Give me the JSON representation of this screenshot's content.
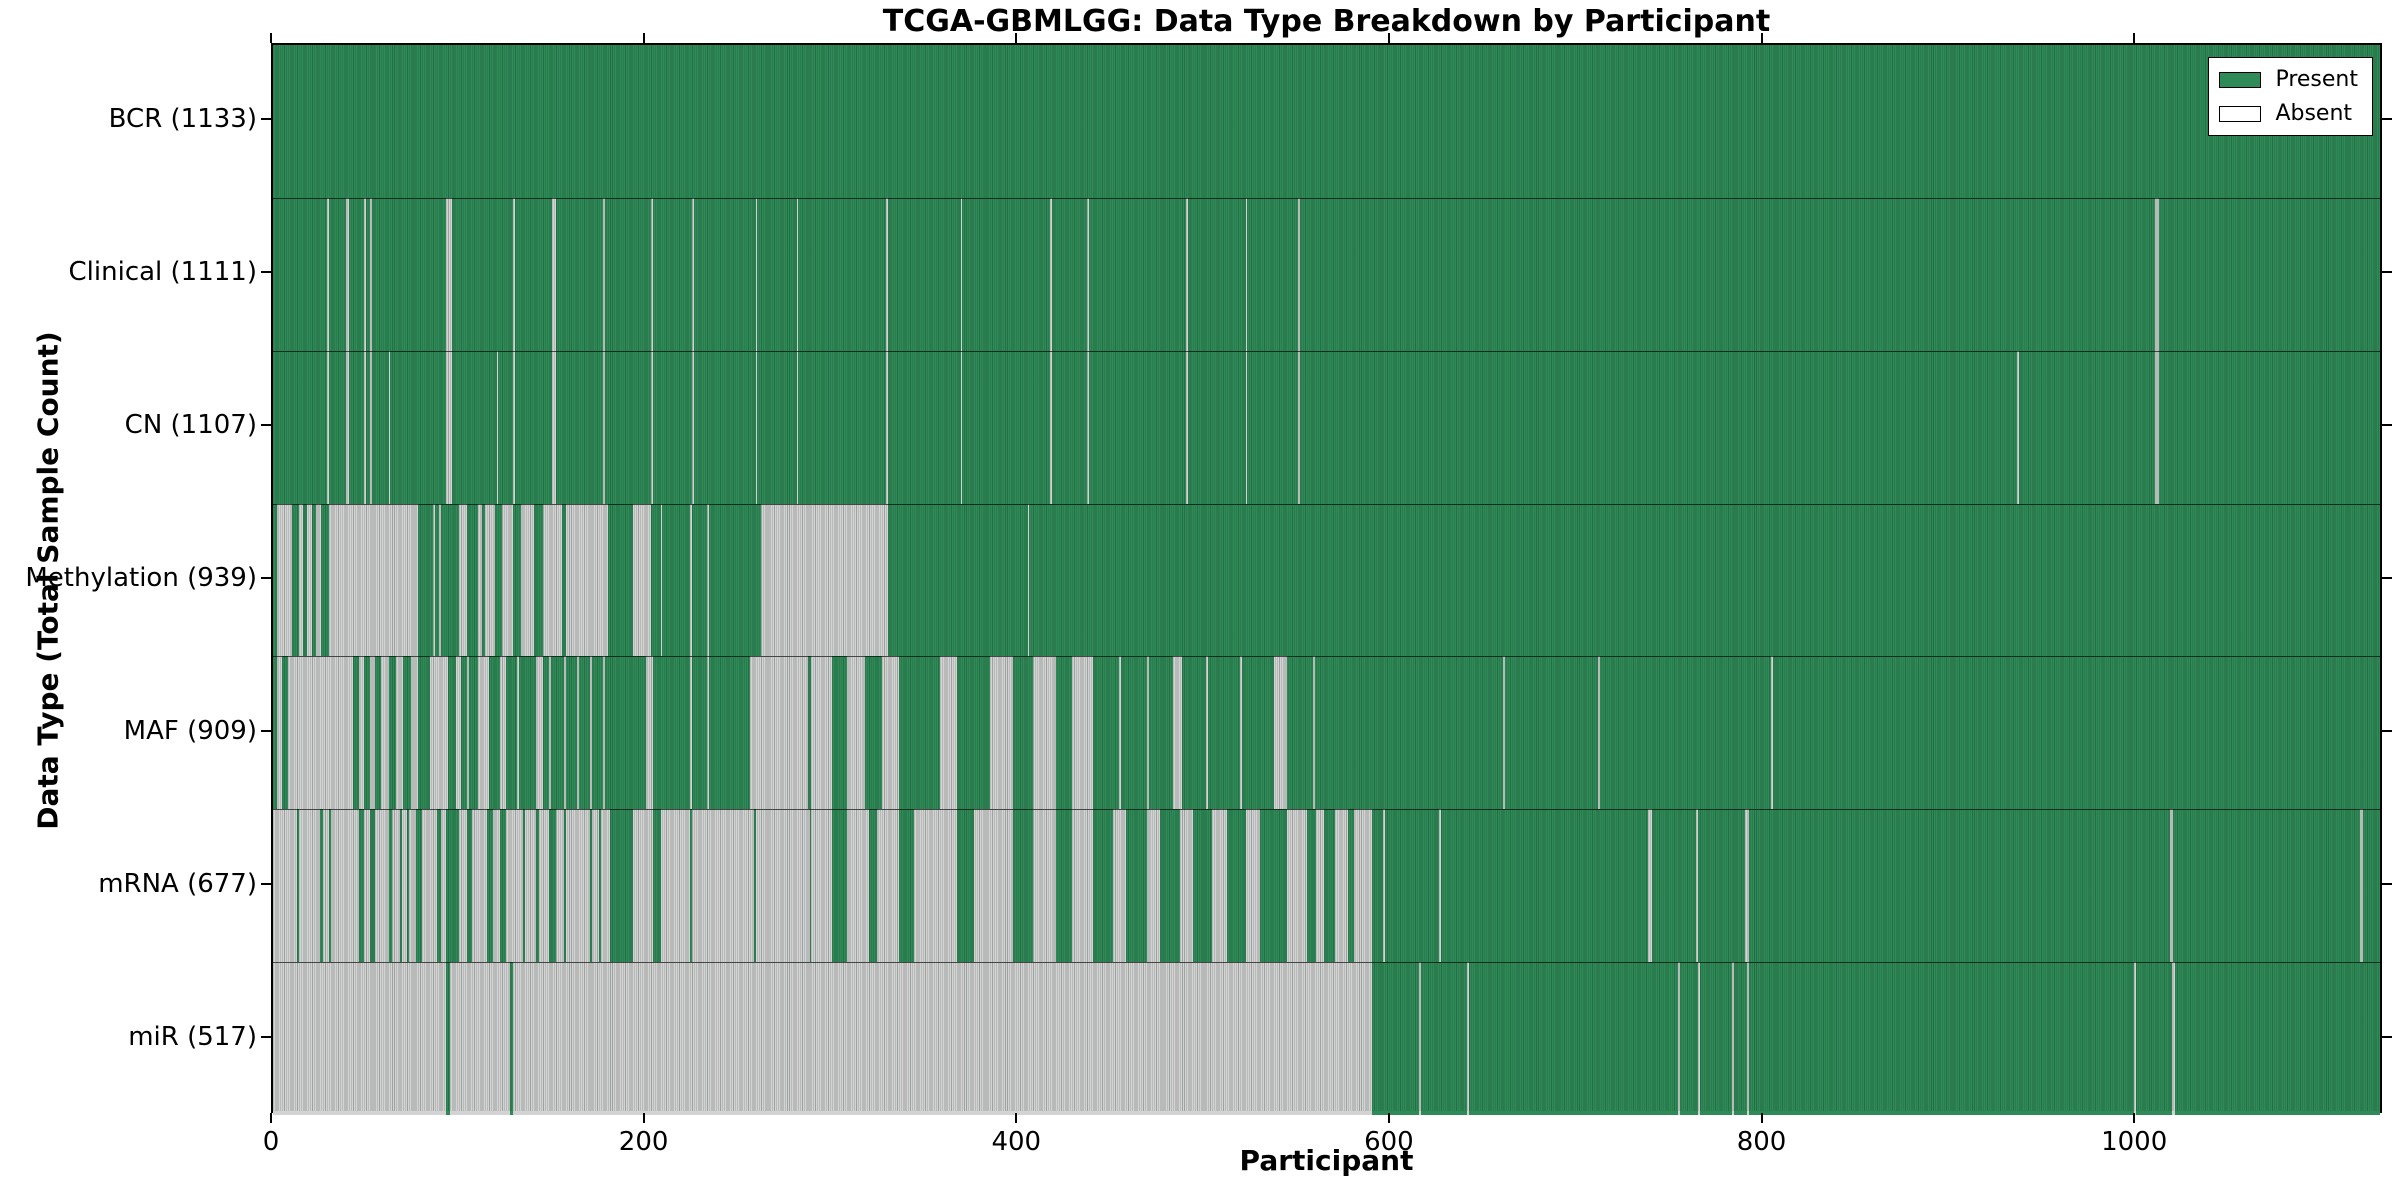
{
  "page": {
    "background": "#ffffff"
  },
  "chart_data": {
    "type": "heatmap",
    "title": "TCGA-GBMLGG: Data Type Breakdown by Participant",
    "xlabel": "Participant",
    "ylabel": "Data Type (Total Sample Count)",
    "x_ticks": [
      0,
      200,
      400,
      600,
      800,
      1000
    ],
    "x_range": [
      0,
      1133
    ],
    "n_participants": 1133,
    "grid": false,
    "legend": {
      "position": "upper right",
      "entries": [
        {
          "label": "Present",
          "color": "#2E8B57"
        },
        {
          "label": "Absent",
          "color": "#FFFFFF"
        }
      ]
    },
    "colors": {
      "present": "#2E8B57",
      "absent": "#D3D3D3",
      "edge": "#000000"
    },
    "rows": [
      {
        "label": "BCR (1133)",
        "data_type": "BCR",
        "present_count": 1133,
        "absent_segments": []
      },
      {
        "label": "Clinical (1111)",
        "data_type": "Clinical",
        "present_count": 1111,
        "absent_segments": [
          [
            29,
            30
          ],
          [
            39,
            41
          ],
          [
            49,
            50
          ],
          [
            52,
            53
          ],
          [
            93,
            96
          ],
          [
            129,
            130
          ],
          [
            150,
            152
          ],
          [
            177,
            178
          ],
          [
            203,
            204
          ],
          [
            225,
            226
          ],
          [
            259,
            260
          ],
          [
            281,
            282
          ],
          [
            329,
            330
          ],
          [
            369,
            370
          ],
          [
            417,
            418
          ],
          [
            437,
            438
          ],
          [
            490,
            491
          ],
          [
            522,
            523
          ],
          [
            550,
            551
          ],
          [
            1010,
            1012
          ]
        ]
      },
      {
        "label": "CN (1107)",
        "data_type": "CN",
        "present_count": 1107,
        "absent_segments": [
          [
            29,
            30
          ],
          [
            39,
            41
          ],
          [
            49,
            50
          ],
          [
            52,
            53
          ],
          [
            62,
            63
          ],
          [
            93,
            96
          ],
          [
            120,
            121
          ],
          [
            129,
            130
          ],
          [
            150,
            152
          ],
          [
            177,
            178
          ],
          [
            203,
            204
          ],
          [
            225,
            226
          ],
          [
            259,
            260
          ],
          [
            281,
            282
          ],
          [
            329,
            330
          ],
          [
            369,
            370
          ],
          [
            417,
            418
          ],
          [
            437,
            438
          ],
          [
            490,
            491
          ],
          [
            522,
            523
          ],
          [
            550,
            551
          ],
          [
            936,
            937
          ],
          [
            1010,
            1012
          ]
        ]
      },
      {
        "label": "Methylation (939)",
        "data_type": "Methylation",
        "present_count": 939,
        "absent_segments": [
          [
            2,
            10
          ],
          [
            14,
            16
          ],
          [
            18,
            21
          ],
          [
            23,
            26
          ],
          [
            30,
            78
          ],
          [
            86,
            87
          ],
          [
            89,
            90
          ],
          [
            100,
            104
          ],
          [
            110,
            112
          ],
          [
            114,
            119
          ],
          [
            123,
            129
          ],
          [
            133,
            140
          ],
          [
            145,
            155
          ],
          [
            157,
            180
          ],
          [
            193,
            203
          ],
          [
            208,
            209
          ],
          [
            224,
            225
          ],
          [
            233,
            234
          ],
          [
            262,
            330
          ],
          [
            405,
            406
          ]
        ]
      },
      {
        "label": "MAF (909)",
        "data_type": "MAF",
        "present_count": 909,
        "absent_segments": [
          [
            2,
            5
          ],
          [
            8,
            43
          ],
          [
            46,
            49
          ],
          [
            52,
            55
          ],
          [
            58,
            62
          ],
          [
            66,
            70
          ],
          [
            74,
            78
          ],
          [
            84,
            94
          ],
          [
            98,
            101
          ],
          [
            104,
            105
          ],
          [
            110,
            116
          ],
          [
            122,
            125
          ],
          [
            131,
            132
          ],
          [
            141,
            145
          ],
          [
            148,
            149
          ],
          [
            156,
            157
          ],
          [
            163,
            164
          ],
          [
            170,
            171
          ],
          [
            177,
            178
          ],
          [
            200,
            204
          ],
          [
            224,
            225
          ],
          [
            233,
            234
          ],
          [
            256,
            287
          ],
          [
            289,
            300
          ],
          [
            308,
            318
          ],
          [
            327,
            336
          ],
          [
            358,
            367
          ],
          [
            385,
            397
          ],
          [
            408,
            420
          ],
          [
            429,
            440
          ],
          [
            454,
            455
          ],
          [
            469,
            470
          ],
          [
            483,
            488
          ],
          [
            501,
            502
          ],
          [
            519,
            520
          ],
          [
            537,
            544
          ],
          [
            558,
            559
          ],
          [
            660,
            661
          ],
          [
            711,
            712
          ],
          [
            804,
            805
          ]
        ]
      },
      {
        "label": "mRNA (677)",
        "data_type": "mRNA",
        "present_count": 677,
        "absent_segments": [
          [
            0,
            13
          ],
          [
            14,
            25
          ],
          [
            27,
            30
          ],
          [
            31,
            46
          ],
          [
            49,
            52
          ],
          [
            55,
            62
          ],
          [
            64,
            68
          ],
          [
            69,
            72
          ],
          [
            73,
            77
          ],
          [
            80,
            88
          ],
          [
            90,
            93
          ],
          [
            100,
            104
          ],
          [
            107,
            115
          ],
          [
            118,
            122
          ],
          [
            125,
            134
          ],
          [
            135,
            141
          ],
          [
            143,
            148
          ],
          [
            152,
            156
          ],
          [
            157,
            170
          ],
          [
            171,
            175
          ],
          [
            176,
            181
          ],
          [
            193,
            204
          ],
          [
            208,
            224
          ],
          [
            225,
            258
          ],
          [
            259,
            288
          ],
          [
            289,
            300
          ],
          [
            308,
            320
          ],
          [
            324,
            336
          ],
          [
            344,
            367
          ],
          [
            376,
            397
          ],
          [
            408,
            420
          ],
          [
            429,
            440
          ],
          [
            451,
            458
          ],
          [
            469,
            476
          ],
          [
            487,
            494
          ],
          [
            504,
            512
          ],
          [
            522,
            530
          ],
          [
            544,
            555
          ],
          [
            560,
            564
          ],
          [
            570,
            577
          ],
          [
            580,
            590
          ],
          [
            596,
            597
          ],
          [
            626,
            627
          ],
          [
            738,
            740
          ],
          [
            764,
            765
          ],
          [
            790,
            792
          ],
          [
            1018,
            1020
          ],
          [
            1120,
            1122
          ]
        ]
      },
      {
        "label": "miR (517)",
        "data_type": "miR",
        "present_count": 517,
        "absent_segments": [
          [
            0,
            93
          ],
          [
            95,
            127
          ],
          [
            129,
            590
          ],
          [
            615,
            616
          ],
          [
            641,
            642
          ],
          [
            754,
            755
          ],
          [
            765,
            766
          ],
          [
            783,
            784
          ],
          [
            791,
            792
          ],
          [
            999,
            1000
          ],
          [
            1019,
            1021
          ]
        ]
      }
    ]
  }
}
